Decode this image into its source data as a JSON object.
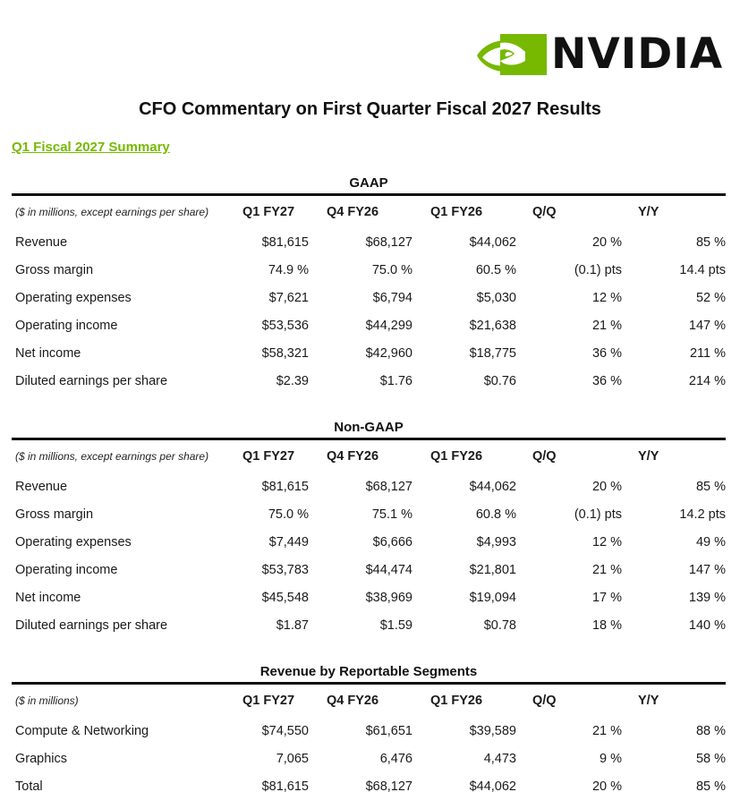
{
  "brand": {
    "name": "NVIDIA",
    "accent": "#76b900",
    "logo_icon": "nvidia-eye-icon"
  },
  "title": "CFO Commentary on First Quarter Fiscal 2027 Results",
  "summary_link": "Q1 Fiscal 2027 Summary",
  "sections": [
    {
      "title": "GAAP",
      "units": "($ in millions, except earnings per share)",
      "columns": [
        "Q1 FY27",
        "Q4 FY26",
        "Q1 FY26",
        "Q/Q",
        "Y/Y"
      ],
      "rows": [
        {
          "label": "Revenue",
          "values": [
            "$81,615",
            "$68,127",
            "$44,062",
            "20 %",
            "85 %"
          ]
        },
        {
          "label": "Gross margin",
          "values": [
            "74.9 %",
            "75.0 %",
            "60.5 %",
            "(0.1) pts",
            "14.4 pts"
          ]
        },
        {
          "label": "Operating expenses",
          "values": [
            "$7,621",
            "$6,794",
            "$5,030",
            "12 %",
            "52 %"
          ]
        },
        {
          "label": "Operating income",
          "values": [
            "$53,536",
            "$44,299",
            "$21,638",
            "21 %",
            "147 %"
          ]
        },
        {
          "label": "Net income",
          "values": [
            "$58,321",
            "$42,960",
            "$18,775",
            "36 %",
            "211 %"
          ]
        },
        {
          "label": "Diluted earnings per share",
          "values": [
            "$2.39",
            "$1.76",
            "$0.76",
            "36 %",
            "214 %"
          ]
        }
      ]
    },
    {
      "title": "Non-GAAP",
      "units": "($ in millions, except earnings per share)",
      "columns": [
        "Q1 FY27",
        "Q4 FY26",
        "Q1 FY26",
        "Q/Q",
        "Y/Y"
      ],
      "rows": [
        {
          "label": "Revenue",
          "values": [
            "$81,615",
            "$68,127",
            "$44,062",
            "20 %",
            "85 %"
          ]
        },
        {
          "label": "Gross margin",
          "values": [
            "75.0 %",
            "75.1 %",
            "60.8 %",
            "(0.1) pts",
            "14.2 pts"
          ]
        },
        {
          "label": "Operating expenses",
          "values": [
            "$7,449",
            "$6,666",
            "$4,993",
            "12 %",
            "49 %"
          ]
        },
        {
          "label": "Operating income",
          "values": [
            "$53,783",
            "$44,474",
            "$21,801",
            "21 %",
            "147 %"
          ]
        },
        {
          "label": "Net income",
          "values": [
            "$45,548",
            "$38,969",
            "$19,094",
            "17 %",
            "139 %"
          ]
        },
        {
          "label": "Diluted earnings per share",
          "values": [
            "$1.87",
            "$1.59",
            "$0.78",
            "18 %",
            "140 %"
          ]
        }
      ]
    },
    {
      "title": "Revenue by Reportable Segments",
      "units": "($ in millions)",
      "columns": [
        "Q1 FY27",
        "Q4 FY26",
        "Q1 FY26",
        "Q/Q",
        "Y/Y"
      ],
      "rows": [
        {
          "label": "Compute & Networking",
          "values": [
            "$74,550",
            "$61,651",
            "$39,589",
            "21 %",
            "88 %"
          ]
        },
        {
          "label": "Graphics",
          "values": [
            "7,065",
            "6,476",
            "4,473",
            "9 %",
            "58 %"
          ]
        },
        {
          "label": "Total",
          "values": [
            "$81,615",
            "$68,127",
            "$44,062",
            "20 %",
            "85 %"
          ]
        }
      ]
    }
  ]
}
